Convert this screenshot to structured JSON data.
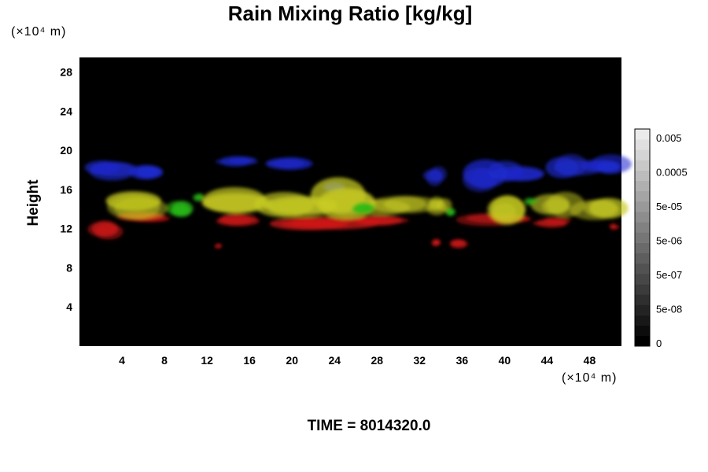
{
  "chart_data": {
    "type": "heatmap",
    "title": "Rain Mixing Ratio [kg/kg]",
    "ylabel": "Height",
    "y_unit": "(×10⁴ m)",
    "x_unit": "(×10⁴ m)",
    "footer": "TIME = 8014320.0",
    "xlim": [
      0,
      51
    ],
    "ylim": [
      0,
      29.5
    ],
    "x_ticks": [
      "4",
      "8",
      "12",
      "16",
      "20",
      "24",
      "28",
      "32",
      "36",
      "40",
      "44",
      "48"
    ],
    "y_ticks": [
      "4",
      "8",
      "12",
      "16",
      "20",
      "24",
      "28"
    ],
    "colorbar": {
      "labels": [
        "0",
        "5e-08",
        "5e-07",
        "5e-06",
        "5e-05",
        "0.0005",
        "0.005"
      ],
      "levels": 21
    },
    "background_color": "#000000",
    "features": [
      {
        "color": "#1e2ad0",
        "x_range": [
          1,
          51
        ],
        "y_range": [
          16,
          19.5
        ]
      },
      {
        "color": "#c8cc22",
        "x_range": [
          1,
          51
        ],
        "y_range": [
          13,
          16.5
        ]
      },
      {
        "color": "#28b818",
        "x_range": [
          8,
          36
        ],
        "y_range": [
          13.5,
          15
        ]
      },
      {
        "color": "#d01818",
        "x_range": [
          1,
          50
        ],
        "y_range": [
          11,
          14
        ]
      }
    ]
  }
}
